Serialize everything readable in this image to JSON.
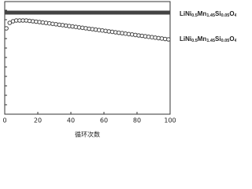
{
  "chart_data": {
    "type": "scatter",
    "x_label": "循环次数",
    "xlim": [
      0,
      100
    ],
    "xticks": [
      0,
      20,
      40,
      60,
      80,
      100
    ],
    "ylim": [
      0,
      143
    ],
    "x": [
      1,
      3,
      5,
      7,
      9,
      11,
      13,
      15,
      17,
      19,
      21,
      23,
      25,
      27,
      29,
      31,
      33,
      35,
      37,
      39,
      41,
      43,
      45,
      47,
      49,
      51,
      53,
      55,
      57,
      59,
      61,
      63,
      65,
      67,
      69,
      71,
      73,
      75,
      77,
      79,
      81,
      83,
      85,
      87,
      89,
      91,
      93,
      95,
      97,
      99
    ],
    "series": [
      {
        "name": "LiNi0.5Mn1.45Si0.05O4",
        "color": "#444444",
        "marker": "square",
        "values": [
          129,
          129,
          129,
          129,
          129,
          129,
          129,
          129,
          129,
          129,
          129,
          129,
          129,
          129,
          129,
          129,
          129,
          129,
          129,
          129,
          129,
          129,
          129,
          129,
          129,
          129,
          129,
          129,
          129,
          129,
          129,
          129,
          129,
          129,
          129,
          129,
          129,
          129,
          129,
          129,
          129,
          129,
          129,
          129,
          129,
          129,
          129,
          129,
          129,
          129
        ]
      },
      {
        "name": "LiNi0.5Mn1.45Si0.05O4",
        "color": "#444444",
        "marker": "circle",
        "values": [
          109,
          116,
          118,
          119,
          119,
          119,
          119,
          118.5,
          118,
          117.5,
          117,
          116.4,
          115.9,
          115.3,
          114.7,
          114.2,
          113.6,
          113.1,
          112.5,
          111.9,
          111.4,
          110.8,
          110.2,
          109.7,
          109.1,
          108.5,
          108.0,
          107.4,
          106.8,
          106.3,
          105.7,
          105.1,
          104.6,
          104.0,
          103.4,
          102.9,
          102.3,
          101.7,
          101.2,
          100.6,
          100.0,
          99.5,
          98.9,
          98.3,
          97.8,
          97.2,
          96.6,
          96.1,
          95.5,
          95.0
        ]
      }
    ]
  }
}
